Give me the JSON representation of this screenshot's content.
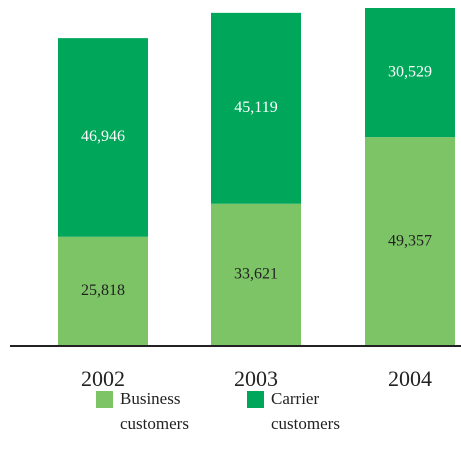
{
  "chart_data": {
    "type": "stacked-bar",
    "categories": [
      "2002",
      "2003",
      "2004"
    ],
    "series": [
      {
        "name": "Business customers",
        "color": "#7dc466",
        "values": [
          25818,
          33621,
          49357
        ],
        "value_labels": [
          "25,818",
          "33,621",
          "49,357"
        ]
      },
      {
        "name": "Carrier customers",
        "color": "#00a65a",
        "values": [
          46946,
          45119,
          30529
        ],
        "value_labels": [
          "46,946",
          "45,119",
          "30,529"
        ]
      }
    ]
  }
}
